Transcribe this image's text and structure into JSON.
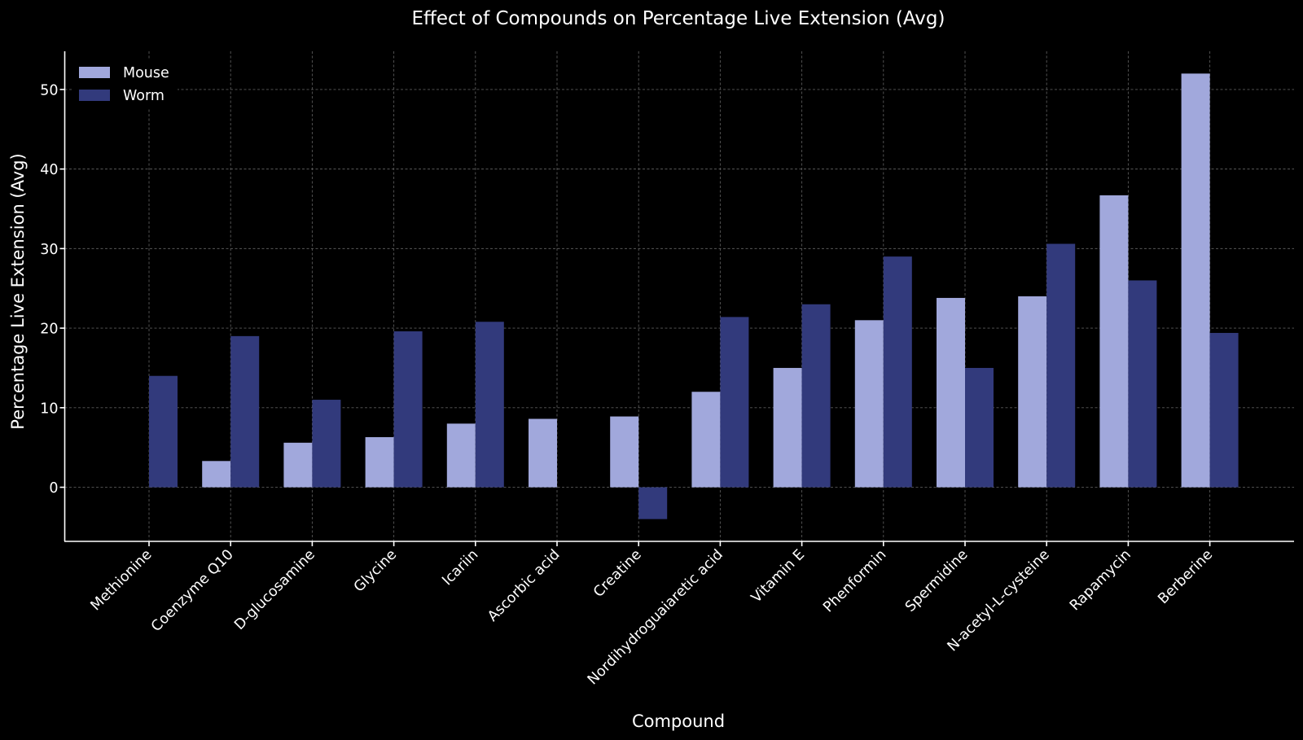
{
  "chart_data": {
    "type": "bar",
    "title": "Effect of Compounds on Percentage Live Extension (Avg)",
    "xlabel": "Compound",
    "ylabel": "Percentage Live Extension (Avg)",
    "categories": [
      "Methionine",
      "Coenzyme Q10",
      "D-glucosamine",
      "Glycine",
      "Icariin",
      "Ascorbic acid",
      "Creatine",
      "Nordihydroguaiaretic acid",
      "Vitamin E",
      "Phenformin",
      "Spermidine",
      "N-acetyl-L-cysteine",
      "Rapamycin",
      "Berberine"
    ],
    "series": [
      {
        "name": "Mouse",
        "color": "#a1a8dc",
        "values": [
          null,
          3.3,
          5.6,
          6.3,
          8.0,
          8.6,
          8.9,
          12.0,
          15.0,
          21.0,
          23.8,
          24.0,
          36.7,
          52.0
        ]
      },
      {
        "name": "Worm",
        "color": "#323a7c",
        "values": [
          14.0,
          19.0,
          11.0,
          19.6,
          20.8,
          null,
          -4.0,
          21.4,
          23.0,
          29.0,
          15.0,
          30.6,
          26.0,
          19.4
        ]
      }
    ],
    "ylim": [
      -6.8,
      54.8
    ],
    "yticks": [
      0,
      10,
      20,
      30,
      40,
      50
    ],
    "ytick_labels": [
      "0",
      "10",
      "20",
      "30",
      "40",
      "50"
    ],
    "grid": true,
    "legend_position": "top-left",
    "background": "#000000"
  }
}
